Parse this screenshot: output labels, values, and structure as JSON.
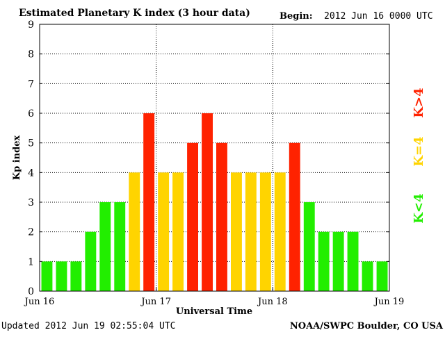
{
  "chart_data": {
    "type": "bar",
    "title": "Estimated Planetary K index (3 hour data)",
    "begin_label": "Begin:",
    "begin_value": "2012 Jun 16 0000 UTC",
    "xlabel": "Universal Time",
    "ylabel": "Kp index",
    "ylim": [
      0,
      9
    ],
    "y_ticks": [
      "0",
      "1",
      "2",
      "3",
      "4",
      "5",
      "6",
      "7",
      "8",
      "9"
    ],
    "x_ticks": [
      {
        "label": "Jun 16",
        "day": 0
      },
      {
        "label": "Jun 17",
        "day": 1
      },
      {
        "label": "Jun 18",
        "day": 2
      },
      {
        "label": "Jun 19",
        "day": 3
      }
    ],
    "grid": true,
    "bars_per_day": 8,
    "values": [
      1,
      1,
      1,
      2,
      3,
      3,
      4,
      6,
      4,
      4,
      5,
      6,
      5,
      4,
      4,
      4,
      4,
      5,
      3,
      2,
      2,
      2,
      1,
      1
    ],
    "colors": {
      "below4": "#22ee00",
      "equal4": "#ffd400",
      "above4": "#ff2200"
    },
    "legend": [
      {
        "label": "K<4",
        "color": "#22ee00"
      },
      {
        "label": "K=4",
        "color": "#ffd400"
      },
      {
        "label": "K>4",
        "color": "#ff2200"
      }
    ],
    "legend_position": "right",
    "updated": "Updated 2012 Jun 19 02:55:04 UTC",
    "credit": "NOAA/SWPC Boulder, CO USA"
  }
}
